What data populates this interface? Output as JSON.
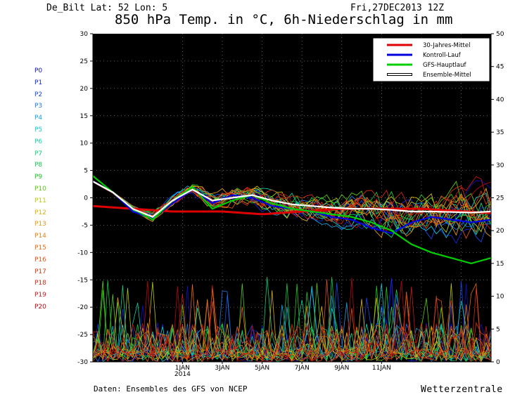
{
  "header": {
    "station": "De_Bilt  Lat: 52 Lon: 5",
    "date": "Fri,27DEC2013 12Z",
    "title": "850 hPa Temp. in °C, 6h-Niederschlag in mm"
  },
  "footer": {
    "source": "Daten: Ensembles des GFS von NCEP",
    "brand": "Wetterzentrale"
  },
  "members": [
    "P0",
    "P1",
    "P2",
    "P3",
    "P4",
    "P5",
    "P6",
    "P7",
    "P8",
    "P9",
    "P10",
    "P11",
    "P12",
    "P13",
    "P14",
    "P15",
    "P16",
    "P17",
    "P18",
    "P19",
    "P20"
  ],
  "member_colors": [
    "#1010c0",
    "#1028d8",
    "#1848e8",
    "#1878e8",
    "#18a0e0",
    "#10c8d8",
    "#10d0a8",
    "#10d078",
    "#10c848",
    "#20c820",
    "#58c810",
    "#b8c810",
    "#d8b010",
    "#e89810",
    "#e88010",
    "#e86810",
    "#e05010",
    "#d83810",
    "#d02810",
    "#c81818",
    "#b80808"
  ],
  "chart_data": {
    "type": "line",
    "x_tick_labels": [
      "1JAN",
      "2014",
      "3JAN",
      "5JAN",
      "7JAN",
      "9JAN",
      "11JAN"
    ],
    "left_axis": {
      "ylim": [
        -30,
        30
      ],
      "ticks": [
        30,
        25,
        20,
        15,
        10,
        5,
        0,
        -5,
        -10,
        -15,
        -20,
        -25,
        -30
      ]
    },
    "right_axis": {
      "ylim": [
        0,
        50
      ],
      "ticks": [
        50,
        45,
        40,
        35,
        30,
        25,
        20,
        15,
        10,
        5,
        0
      ]
    },
    "x_range_days": [
      -4.5,
      15.5
    ],
    "grid": "dotted",
    "legend": {
      "position": "top-right",
      "items": [
        {
          "label": "30-Jahres-Mittel",
          "color": "#e00000"
        },
        {
          "label": "Kontroll-Lauf",
          "color": "#0000e0"
        },
        {
          "label": "GFS-Hauptlauf",
          "color": "#00d000"
        },
        {
          "label": "Ensemble-Mittel",
          "color": "#ffffff"
        }
      ]
    },
    "series": [
      {
        "name": "30-Jahres-Mittel",
        "color": "#e00000",
        "x": [
          -4.5,
          -2.5,
          -0.5,
          2.0,
          4.0,
          6.0,
          8.0,
          10.0,
          12.0,
          15.5
        ],
        "y": [
          -1.5,
          -2.0,
          -2.5,
          -2.5,
          -3.0,
          -2.5,
          -2.0,
          -2.0,
          -2.0,
          -2.8
        ]
      },
      {
        "name": "Kontroll-Lauf",
        "color": "#0000e0",
        "x": [
          -4.5,
          -3.5,
          -2.5,
          -1.5,
          -0.5,
          0.5,
          1.5,
          2.5,
          3.5,
          4.5,
          5.5,
          6.5,
          7.5,
          8.5,
          9.5,
          10.5,
          11.5,
          12.5,
          13.5,
          14.5,
          15.5
        ],
        "y": [
          3.0,
          1.0,
          -2.5,
          -3.8,
          -1.0,
          1.5,
          -1.0,
          0.5,
          0.0,
          -1.5,
          -2.0,
          -2.5,
          -3.5,
          -4.0,
          -5.5,
          -6.5,
          -4.5,
          -3.5,
          -4.0,
          -4.5,
          -4.0
        ]
      },
      {
        "name": "GFS-Hauptlauf",
        "color": "#00d000",
        "x": [
          -4.5,
          -3.5,
          -2.5,
          -1.5,
          -0.5,
          0.5,
          1.5,
          2.5,
          3.5,
          4.5,
          5.5,
          6.5,
          7.5,
          8.5,
          9.5,
          10.5,
          11.5,
          12.5,
          13.5,
          14.5,
          15.5
        ],
        "y": [
          4.0,
          1.0,
          -2.0,
          -4.0,
          -0.5,
          2.0,
          -2.0,
          -0.5,
          0.5,
          -1.0,
          -2.0,
          -2.5,
          -3.0,
          -3.5,
          -4.5,
          -6.0,
          -8.5,
          -10.0,
          -11.0,
          -12.0,
          -11.0
        ]
      },
      {
        "name": "Ensemble-Mittel",
        "color": "#ffffff",
        "x": [
          -4.5,
          -3.5,
          -2.5,
          -1.5,
          -0.5,
          0.5,
          1.5,
          2.5,
          3.5,
          4.5,
          5.5,
          6.5,
          7.5,
          8.5,
          9.5,
          10.5,
          11.5,
          12.5,
          13.5,
          14.5,
          15.5
        ],
        "y": [
          3.0,
          1.0,
          -2.0,
          -3.5,
          -0.5,
          1.5,
          -0.5,
          0.0,
          0.5,
          -0.5,
          -1.2,
          -1.5,
          -1.8,
          -2.0,
          -2.0,
          -2.2,
          -2.5,
          -2.5,
          -2.6,
          -2.7,
          -2.5
        ]
      }
    ]
  }
}
